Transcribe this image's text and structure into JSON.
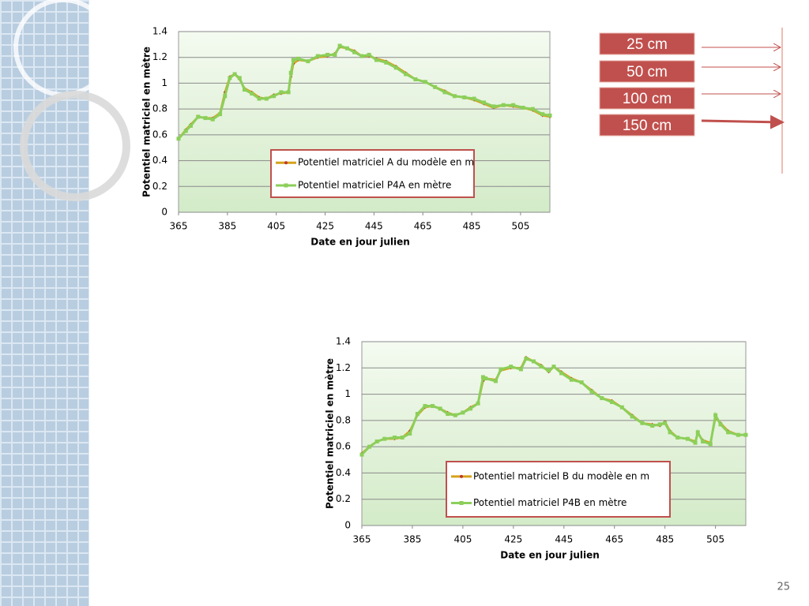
{
  "chart_data": [
    {
      "type": "line",
      "ylabel": "Potentiel matriciel en mètre",
      "xlabel": "Date en jour julien",
      "xlim": [
        365,
        517
      ],
      "xticks": [
        365,
        385,
        405,
        425,
        445,
        465,
        485,
        505
      ],
      "ylim": [
        0,
        1.4
      ],
      "yticks": [
        0,
        0.2,
        0.4,
        0.6,
        0.8,
        1,
        1.2,
        1.4
      ],
      "grid": true,
      "x": [
        365,
        368,
        370,
        373,
        376,
        379,
        382,
        384,
        386,
        388,
        390,
        392,
        395,
        398,
        401,
        404,
        407,
        410,
        411,
        412,
        414,
        418,
        422,
        426,
        429,
        431,
        434,
        437,
        440,
        443,
        446,
        450,
        454,
        458,
        462,
        466,
        470,
        474,
        478,
        482,
        486,
        490,
        494,
        498,
        502,
        506,
        510,
        514,
        517
      ],
      "series": [
        {
          "name": "Potentiel matriciel A du modèle en m",
          "color": "#d6a21c",
          "marker_color": "#c0392b",
          "values": [
            0.57,
            0.64,
            0.68,
            0.74,
            0.73,
            0.73,
            0.77,
            0.93,
            1.05,
            1.07,
            1.03,
            0.96,
            0.93,
            0.89,
            0.88,
            0.91,
            0.92,
            0.93,
            1.05,
            1.15,
            1.18,
            1.17,
            1.2,
            1.21,
            1.23,
            1.28,
            1.27,
            1.25,
            1.21,
            1.21,
            1.19,
            1.17,
            1.13,
            1.08,
            1.03,
            1.01,
            0.97,
            0.94,
            0.9,
            0.89,
            0.87,
            0.84,
            0.81,
            0.83,
            0.82,
            0.81,
            0.79,
            0.75,
            0.74
          ]
        },
        {
          "name": "Potentiel matriciel P4A en mètre",
          "color": "#8ccf5a",
          "marker_color": "#8ccf5a",
          "values": [
            0.57,
            0.63,
            0.67,
            0.74,
            0.73,
            0.72,
            0.76,
            0.9,
            1.04,
            1.07,
            1.04,
            0.95,
            0.92,
            0.88,
            0.88,
            0.9,
            0.93,
            0.93,
            1.08,
            1.18,
            1.19,
            1.17,
            1.21,
            1.22,
            1.22,
            1.29,
            1.27,
            1.24,
            1.21,
            1.22,
            1.18,
            1.16,
            1.12,
            1.07,
            1.03,
            1.01,
            0.97,
            0.93,
            0.9,
            0.89,
            0.88,
            0.85,
            0.82,
            0.83,
            0.83,
            0.81,
            0.8,
            0.76,
            0.75
          ]
        }
      ]
    },
    {
      "type": "line",
      "ylabel": "Potentiel matriciel en mètre",
      "xlabel": "Date en jour julien",
      "xlim": [
        365,
        517
      ],
      "xticks": [
        365,
        385,
        405,
        425,
        445,
        465,
        485,
        505
      ],
      "ylim": [
        0,
        1.4
      ],
      "yticks": [
        0,
        0.2,
        0.4,
        0.6,
        0.8,
        1,
        1.2,
        1.4
      ],
      "grid": true,
      "x": [
        365,
        368,
        371,
        374,
        378,
        381,
        384,
        387,
        390,
        393,
        396,
        399,
        402,
        405,
        408,
        411,
        413,
        414,
        418,
        420,
        424,
        428,
        430,
        433,
        436,
        439,
        441,
        444,
        448,
        452,
        456,
        460,
        464,
        468,
        472,
        476,
        480,
        483,
        485,
        487,
        490,
        494,
        497,
        498,
        500,
        503,
        505,
        507,
        510,
        514,
        517
      ],
      "series": [
        {
          "name": "Potentiel matriciel B du modèle en m",
          "color": "#d6a21c",
          "marker_color": "#c0392b",
          "values": [
            0.55,
            0.6,
            0.64,
            0.66,
            0.66,
            0.67,
            0.72,
            0.84,
            0.9,
            0.91,
            0.89,
            0.86,
            0.84,
            0.86,
            0.9,
            0.93,
            1.1,
            1.12,
            1.11,
            1.18,
            1.2,
            1.2,
            1.28,
            1.25,
            1.22,
            1.17,
            1.21,
            1.17,
            1.12,
            1.09,
            1.03,
            0.97,
            0.95,
            0.9,
            0.84,
            0.78,
            0.77,
            0.76,
            0.79,
            0.72,
            0.67,
            0.66,
            0.64,
            0.7,
            0.65,
            0.63,
            0.82,
            0.78,
            0.72,
            0.69,
            0.69
          ]
        },
        {
          "name": "Potentiel matriciel P4B en mètre",
          "color": "#8ccf5a",
          "marker_color": "#8ccf5a",
          "values": [
            0.54,
            0.6,
            0.64,
            0.66,
            0.67,
            0.67,
            0.7,
            0.85,
            0.91,
            0.91,
            0.89,
            0.85,
            0.84,
            0.86,
            0.89,
            0.93,
            1.13,
            1.12,
            1.1,
            1.19,
            1.21,
            1.19,
            1.27,
            1.25,
            1.21,
            1.18,
            1.21,
            1.16,
            1.11,
            1.09,
            1.02,
            0.97,
            0.94,
            0.9,
            0.83,
            0.78,
            0.76,
            0.77,
            0.78,
            0.71,
            0.67,
            0.66,
            0.63,
            0.71,
            0.64,
            0.62,
            0.84,
            0.77,
            0.71,
            0.69,
            0.69
          ]
        }
      ]
    }
  ],
  "depth_labels": [
    "25 cm",
    "50 cm",
    "100 cm",
    "150 cm"
  ],
  "page_number": "25"
}
